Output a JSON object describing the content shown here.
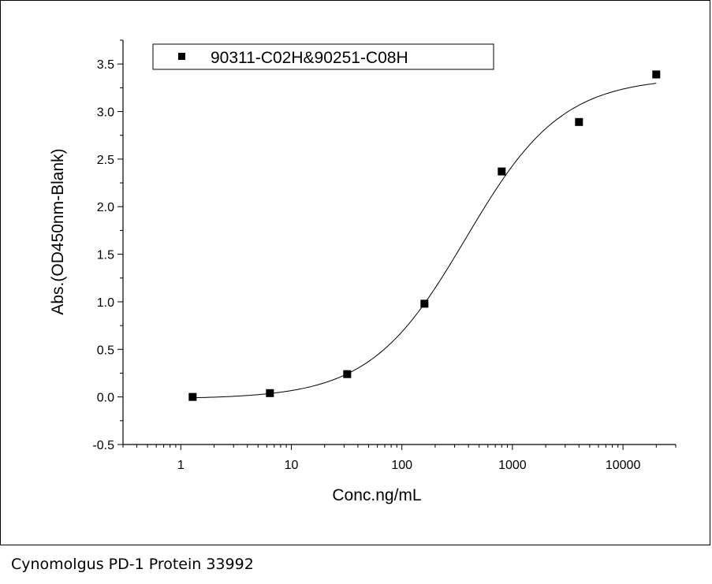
{
  "chart_data": {
    "type": "scatter",
    "title": "",
    "xlabel": "Conc.ng/mL",
    "ylabel": "Abs.(OD450nm-Blank)",
    "x_scale": "log",
    "xlim": [
      0.3,
      30000
    ],
    "ylim": [
      -0.5,
      3.75
    ],
    "x_ticks": [
      {
        "value": 1,
        "label": "1"
      },
      {
        "value": 10,
        "label": "10"
      },
      {
        "value": 100,
        "label": "100"
      },
      {
        "value": 1000,
        "label": "1000"
      },
      {
        "value": 10000,
        "label": "10000"
      }
    ],
    "y_ticks": [
      {
        "value": -0.5,
        "label": "-0.5"
      },
      {
        "value": 0.0,
        "label": "0.0"
      },
      {
        "value": 0.5,
        "label": "0.5"
      },
      {
        "value": 1.0,
        "label": "1.0"
      },
      {
        "value": 1.5,
        "label": "1.5"
      },
      {
        "value": 2.0,
        "label": "2.0"
      },
      {
        "value": 2.5,
        "label": "2.5"
      },
      {
        "value": 3.0,
        "label": "3.0"
      },
      {
        "value": 3.5,
        "label": "3.5"
      }
    ],
    "grid": false,
    "legend": {
      "placement": "top-left",
      "marker": "square"
    },
    "series": [
      {
        "name": "90311-C02H&90251-C08H",
        "color": "#000000",
        "marker": "square",
        "x": [
          1.28,
          6.4,
          32,
          160,
          800,
          4000,
          20000
        ],
        "y": [
          0.0,
          0.04,
          0.24,
          0.98,
          2.37,
          2.89,
          3.39
        ]
      }
    ],
    "fit": {
      "type": "4PL",
      "bottom": -0.02,
      "top": 3.36,
      "ec50": 380,
      "hill": 1.0,
      "x_range": [
        1.28,
        20000
      ]
    }
  },
  "caption": "Cynomolgus PD-1 Protein 33992"
}
